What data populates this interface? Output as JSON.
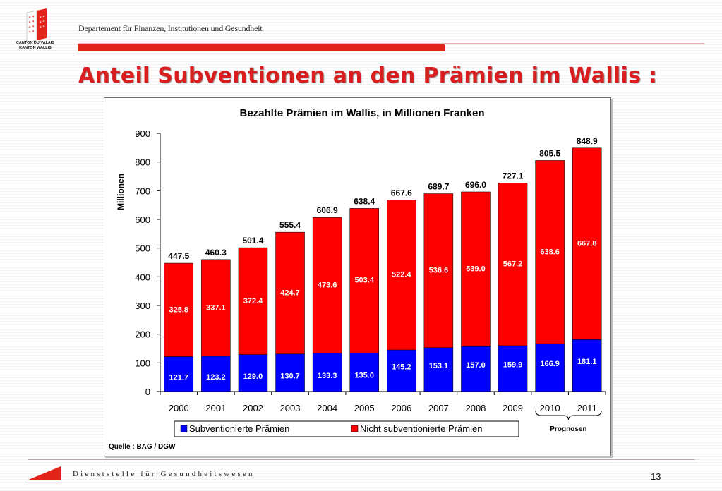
{
  "header": {
    "department": "Departement für Finanzen, Institutionen und Gesundheit",
    "logo_line1": "CANTON DU VALAIS",
    "logo_line2": "KANTON WALLIS"
  },
  "slide_title": "Anteil Subventionen an den Prämien im Wallis :",
  "footer": {
    "service": "Dienststelle für Gesundheitswesen",
    "page_number": "13"
  },
  "colors": {
    "subsidized": "#0000ff",
    "non_subsidized": "#ff0000",
    "title_red": "#d81e1e"
  },
  "chart_data": {
    "type": "bar",
    "stacked": true,
    "title": "Bezahlte Prämien im Wallis, in Millionen Franken",
    "ylabel": "Millionen",
    "xlabel": "",
    "ylim": [
      0,
      900
    ],
    "yticks": [
      0,
      100,
      200,
      300,
      400,
      500,
      600,
      700,
      800,
      900
    ],
    "categories": [
      "2000",
      "2001",
      "2002",
      "2003",
      "2004",
      "2005",
      "2006",
      "2007",
      "2008",
      "2009",
      "2010",
      "2011"
    ],
    "series": [
      {
        "name": "Subventionierte Prämien",
        "color": "#0000ff",
        "values": [
          121.7,
          123.2,
          129.0,
          130.7,
          133.3,
          135.0,
          145.2,
          153.1,
          157.0,
          159.9,
          166.9,
          181.1
        ]
      },
      {
        "name": "Nicht subventionierte Prämien",
        "color": "#ff0000",
        "values": [
          325.8,
          337.1,
          372.4,
          424.7,
          473.6,
          503.4,
          522.4,
          536.6,
          539.0,
          567.2,
          638.6,
          667.8
        ]
      }
    ],
    "totals": [
      447.5,
      460.3,
      501.4,
      555.4,
      606.9,
      638.4,
      667.6,
      689.7,
      696.0,
      727.1,
      805.5,
      848.9
    ],
    "forecast_label": "Prognosen",
    "forecast_years": [
      "2010",
      "2011"
    ],
    "source": "Quelle  :  BAG / DGW",
    "grid": false,
    "legend": "bottom"
  }
}
